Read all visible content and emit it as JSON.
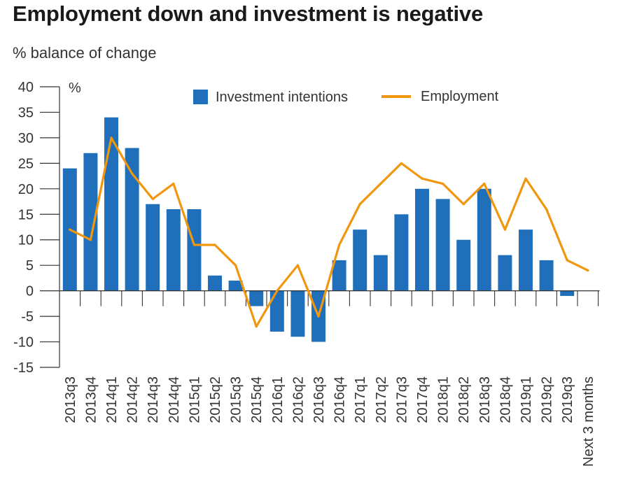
{
  "title": "Employment down and investment is negative",
  "subtitle": "% balance of change",
  "chart_data": {
    "type": "bar+line",
    "title": "Employment down and investment is negative",
    "subtitle": "% balance of change",
    "unit_label": "%",
    "categories": [
      "2013q3",
      "2013q4",
      "2014q1",
      "2014q2",
      "2014q3",
      "2014q4",
      "2015q1",
      "2015q2",
      "2015q3",
      "2015q4",
      "2016q1",
      "2016q2",
      "2016q3",
      "2016q4",
      "2017q1",
      "2017q2",
      "2017q3",
      "2017q4",
      "2018q1",
      "2018q2",
      "2018q3",
      "2018q4",
      "2019q1",
      "2019q2",
      "2019q3",
      "Next 3 months"
    ],
    "series": [
      {
        "name": "Investment intentions",
        "type": "bar",
        "color": "#1f6fba",
        "values": [
          24,
          27,
          34,
          28,
          17,
          16,
          16,
          3,
          2,
          -3,
          -8,
          -9,
          -10,
          6,
          12,
          7,
          15,
          20,
          18,
          10,
          20,
          7,
          12,
          6,
          -1,
          null
        ]
      },
      {
        "name": "Employment",
        "type": "line",
        "color": "#f0960f",
        "values": [
          12,
          10,
          30,
          23,
          18,
          21,
          9,
          9,
          5,
          -7,
          0,
          5,
          -5,
          9,
          17,
          21,
          25,
          22,
          21,
          17,
          21,
          12,
          22,
          16,
          6,
          4
        ]
      }
    ],
    "ylim": [
      -15,
      40
    ],
    "yticks": [
      40,
      35,
      30,
      25,
      20,
      15,
      10,
      5,
      0,
      -5,
      -10,
      -15
    ],
    "legend": "top"
  }
}
